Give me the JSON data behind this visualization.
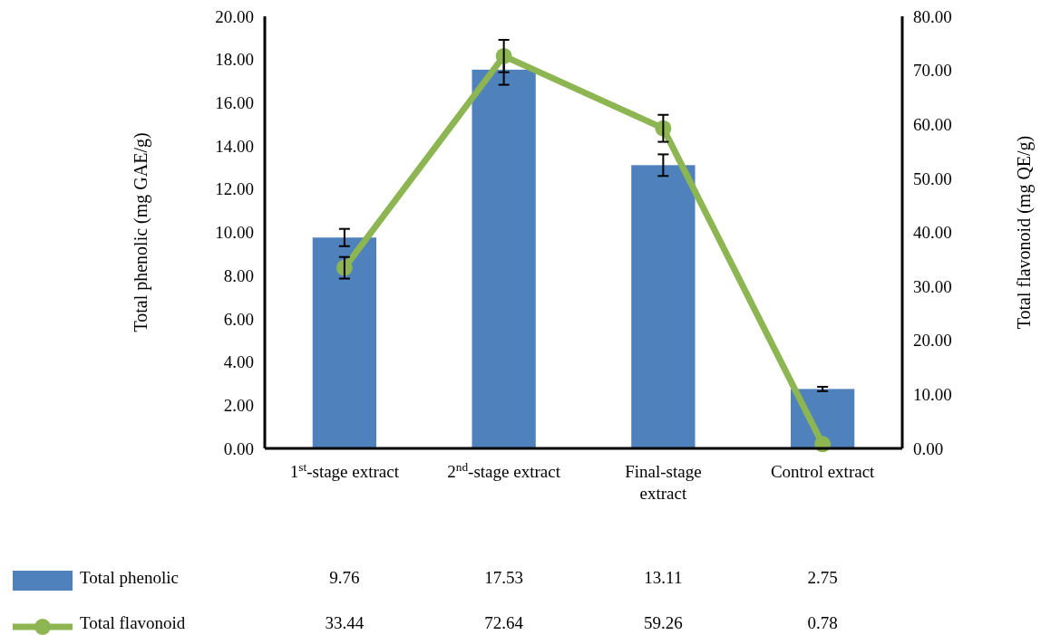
{
  "chart_data": {
    "type": "bar",
    "categories": [
      "1$^{st}$-stage extract",
      "2$^{nd}$-stage extract",
      "Final-stage extract",
      "Control extract"
    ],
    "ylabel": "Total phenolic (mg GAE/g)",
    "y2label": "Total flavonoid (mg QE/g)",
    "series": [
      {
        "name": "Total phenolic",
        "color": "#4f81bd",
        "values": [
          9.76,
          17.53,
          13.11,
          2.75
        ],
        "errors": [
          0.4,
          0.7,
          0.5,
          0.1
        ]
      },
      {
        "name": "Total flavonoid",
        "type": "line",
        "axis": "y2",
        "color": "#8db552",
        "values": [
          33.44,
          72.64,
          59.26,
          0.78
        ],
        "errors": [
          2,
          3,
          2.5,
          null
        ]
      }
    ],
    "ylim": [
      0,
      20
    ],
    "yticks": [
      {
        "value": 0,
        "label": "0.00"
      },
      {
        "value": 2,
        "label": "2.00"
      },
      {
        "value": 4,
        "label": "4.00"
      },
      {
        "value": 6,
        "label": "6.00"
      },
      {
        "value": 8,
        "label": "8.00"
      },
      {
        "value": 10,
        "label": "10.00"
      },
      {
        "value": 12,
        "label": "12.00"
      },
      {
        "value": 14,
        "label": "14.00"
      },
      {
        "value": 16,
        "label": "16.00"
      },
      {
        "value": 18,
        "label": "18.00"
      },
      {
        "value": 20,
        "label": "20.00"
      }
    ],
    "y2lim": [
      0,
      80
    ],
    "y2ticks": [
      {
        "value": 0,
        "label": "0.00"
      },
      {
        "value": 10,
        "label": "10.00"
      },
      {
        "value": 20,
        "label": "20.00"
      },
      {
        "value": 30,
        "label": "30.00"
      },
      {
        "value": 40,
        "label": "40.00"
      },
      {
        "value": 50,
        "label": "50.00"
      },
      {
        "value": 60,
        "label": "60.00"
      },
      {
        "value": 70,
        "label": "70.00"
      },
      {
        "value": 80,
        "label": "80.00"
      }
    ],
    "grid": false,
    "legend": "bottom",
    "data_labels": true,
    "marker": "circle",
    "line_style": "solid"
  }
}
